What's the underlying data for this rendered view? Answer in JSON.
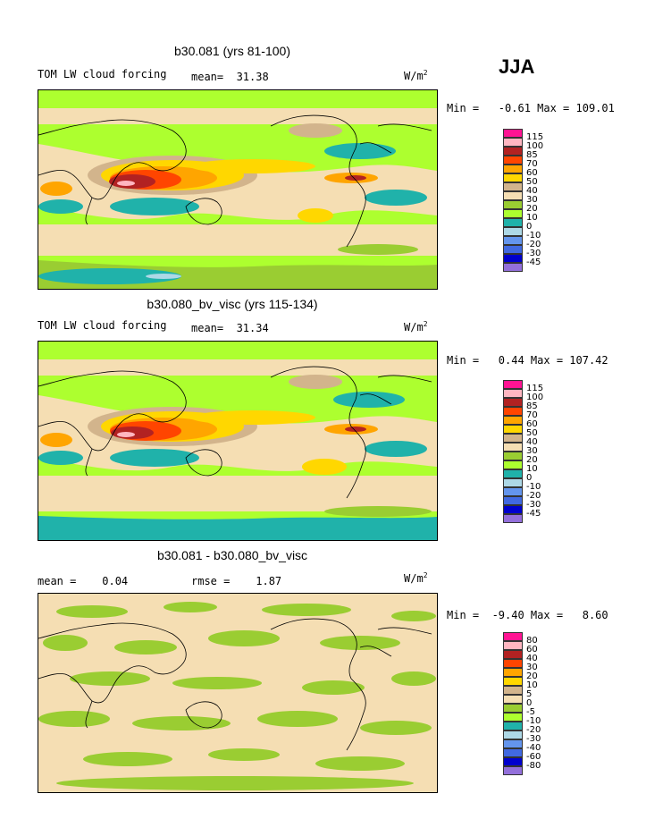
{
  "season": "JJA",
  "panels": [
    {
      "title": "b30.081 (yrs 81-100)",
      "left_label": "TOM LW cloud forcing",
      "mean_label": "mean=  31.38",
      "units": "W/m",
      "units_sup": "2",
      "minmax": "Min =   -0.61 Max = 109.01",
      "legend": [
        "115",
        "100",
        "85",
        "70",
        "60",
        "50",
        "40",
        "30",
        "20",
        "10",
        "0",
        "-10",
        "-20",
        "-30",
        "-45"
      ]
    },
    {
      "title": "b30.080_bv_visc (yrs 115-134)",
      "left_label": "TOM LW cloud forcing",
      "mean_label": "mean=  31.34",
      "units": "W/m",
      "units_sup": "2",
      "minmax": "Min =   0.44 Max = 107.42",
      "legend": [
        "115",
        "100",
        "85",
        "70",
        "60",
        "50",
        "40",
        "30",
        "20",
        "10",
        "0",
        "-10",
        "-20",
        "-30",
        "-45"
      ]
    },
    {
      "title": "b30.081 - b30.080_bv_visc",
      "left_label": "mean =    0.04",
      "mean_label": "rmse =    1.87",
      "units": "W/m",
      "units_sup": "2",
      "minmax": "Min =  -9.40 Max =   8.60",
      "legend": [
        "80",
        "60",
        "40",
        "30",
        "20",
        "10",
        "5",
        "0",
        "-5",
        "-10",
        "-20",
        "-30",
        "-40",
        "-60",
        "-80"
      ]
    }
  ],
  "colors": {
    "scale": [
      "#ff1493",
      "#ffb6c1",
      "#b22222",
      "#ff4500",
      "#ffa500",
      "#ffd700",
      "#d2b48c",
      "#f5deb3",
      "#9acd32",
      "#adff2f",
      "#20b2aa",
      "#add8e6",
      "#6495ed",
      "#4169e1",
      "#0000cd",
      "#9370db"
    ]
  }
}
